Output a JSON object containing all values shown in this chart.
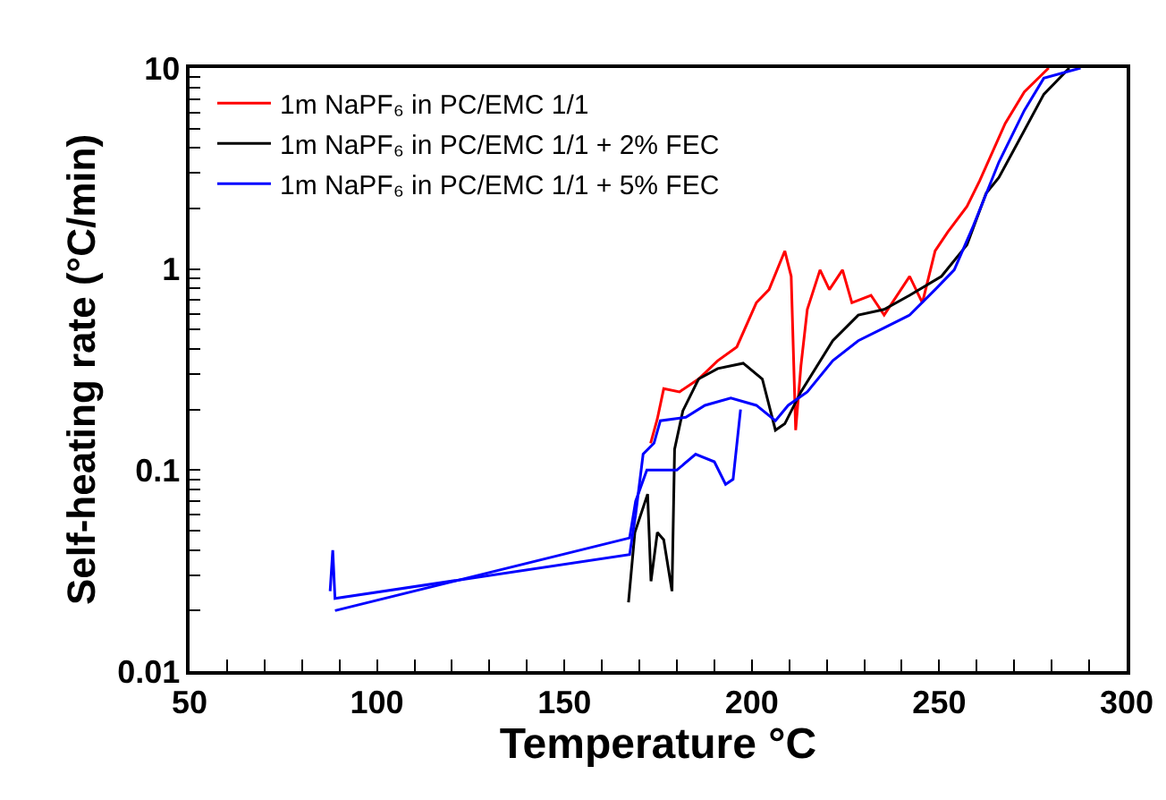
{
  "chart_data": {
    "type": "line",
    "xlabel": "Temperature °C",
    "ylabel": "Self-heating rate (°C/min)",
    "log": "y",
    "grid": false,
    "legend": "top left",
    "marker": "none",
    "line_style": "solid",
    "xlim": [
      50,
      300
    ],
    "ylim": [
      0.01,
      10
    ],
    "xticks": [
      50,
      {
        "value": 60,
        "label": null
      },
      {
        "value": 70,
        "label": null
      },
      {
        "value": 80,
        "label": null
      },
      {
        "value": 90,
        "label": null
      },
      100,
      {
        "value": 110,
        "label": null
      },
      {
        "value": 120,
        "label": null
      },
      {
        "value": 130,
        "label": null
      },
      {
        "value": 140,
        "label": null
      },
      150,
      {
        "value": 160,
        "label": null
      },
      {
        "value": 170,
        "label": null
      },
      {
        "value": 180,
        "label": null
      },
      {
        "value": 190,
        "label": null
      },
      200,
      {
        "value": 210,
        "label": null
      },
      {
        "value": 220,
        "label": null
      },
      {
        "value": 230,
        "label": null
      },
      {
        "value": 240,
        "label": null
      },
      250,
      {
        "value": 260,
        "label": null
      },
      {
        "value": 270,
        "label": null
      },
      {
        "value": 280,
        "label": null
      },
      {
        "value": 290,
        "label": null
      },
      300
    ],
    "yticks": [
      0.01,
      {
        "value": 0.02,
        "label": null
      },
      {
        "value": 0.03,
        "label": null
      },
      {
        "value": 0.04,
        "label": null
      },
      {
        "value": 0.05,
        "label": null
      },
      {
        "value": 0.06,
        "label": null
      },
      {
        "value": 0.07,
        "label": null
      },
      {
        "value": 0.08,
        "label": null
      },
      {
        "value": 0.09,
        "label": null
      },
      0.1,
      {
        "value": 0.2,
        "label": null
      },
      {
        "value": 0.3,
        "label": null
      },
      {
        "value": 0.4,
        "label": null
      },
      {
        "value": 0.5,
        "label": null
      },
      {
        "value": 0.6,
        "label": null
      },
      {
        "value": 0.7,
        "label": null
      },
      {
        "value": 0.8,
        "label": null
      },
      {
        "value": 0.9,
        "label": null
      },
      1,
      {
        "value": 2,
        "label": null
      },
      {
        "value": 3,
        "label": null
      },
      {
        "value": 4,
        "label": null
      },
      {
        "value": 5,
        "label": null
      },
      {
        "value": 6,
        "label": null
      },
      {
        "value": 7,
        "label": null
      },
      {
        "value": 8,
        "label": null
      },
      {
        "value": 9,
        "label": null
      },
      10
    ],
    "series": [
      {
        "name": "1m NaPF₆ in PC/EMC 1/1",
        "color": "#ff0000",
        "x": [
          173,
          174.8,
          176.5,
          180.7,
          185.8,
          190.9,
          196,
          201.2,
          204.6,
          208.8,
          210.5,
          211.7,
          213.1,
          214.8,
          218.2,
          220.7,
          224.2,
          226.7,
          231.8,
          235.3,
          242.1,
          245.5,
          248.9,
          252.3,
          257.4,
          260.8,
          267.6,
          272.7,
          279.2
        ],
        "values": [
          0.136,
          0.18,
          0.254,
          0.245,
          0.284,
          0.35,
          0.41,
          0.68,
          0.79,
          1.23,
          0.92,
          0.158,
          0.33,
          0.63,
          0.99,
          0.79,
          0.99,
          0.68,
          0.74,
          0.59,
          0.92,
          0.68,
          1.23,
          1.53,
          2.05,
          2.75,
          5.3,
          7.6,
          10
        ]
      },
      {
        "name": "1m NaPF₆ in PC/EMC 1/1 + 2% FEC",
        "color": "#000000",
        "x": [
          167.1,
          168.8,
          172.2,
          173.1,
          174.8,
          176.5,
          178.7,
          179.4,
          181.6,
          185.8,
          190.9,
          197.7,
          202.8,
          206.3,
          208.8,
          213.1,
          221.6,
          228.4,
          235.3,
          242.1,
          250.6,
          257.4,
          262.5,
          265.9,
          271,
          277.9,
          284.7
        ],
        "values": [
          0.022,
          0.049,
          0.076,
          0.028,
          0.049,
          0.045,
          0.025,
          0.127,
          0.197,
          0.284,
          0.32,
          0.34,
          0.284,
          0.158,
          0.17,
          0.245,
          0.44,
          0.59,
          0.63,
          0.74,
          0.92,
          1.32,
          2.38,
          2.85,
          4.27,
          7.4,
          10
        ]
      },
      {
        "name": "1m NaPF₆ in PC/EMC 1/1 + 5% FEC",
        "color": "#0000ff",
        "x": [
          87.5,
          88.2,
          88.8,
          167.4,
          169,
          171,
          173.9,
          175.6,
          182.4,
          187.5,
          194.4,
          201.2,
          206.3,
          209.7,
          214.8,
          221.6,
          228.4,
          235.3,
          242.1,
          248.9,
          254,
          259.1,
          265.9,
          272.7,
          277.9,
          287.7
        ],
        "values": [
          0.025,
          0.04,
          0.023,
          0.038,
          0.06,
          0.12,
          0.136,
          0.176,
          0.183,
          0.21,
          0.228,
          0.21,
          0.176,
          0.21,
          0.245,
          0.35,
          0.44,
          0.51,
          0.59,
          0.79,
          0.99,
          1.64,
          3.4,
          6.15,
          8.9,
          10
        ]
      },
      {
        "color": "#0000ff",
        "x": [
          88.8,
          167.4,
          169,
          172,
          176,
          180,
          185,
          190,
          193,
          195,
          197
        ],
        "values": [
          0.02,
          0.046,
          0.07,
          0.1,
          0.1,
          0.1,
          0.12,
          0.11,
          0.085,
          0.09,
          0.2
        ]
      }
    ]
  }
}
